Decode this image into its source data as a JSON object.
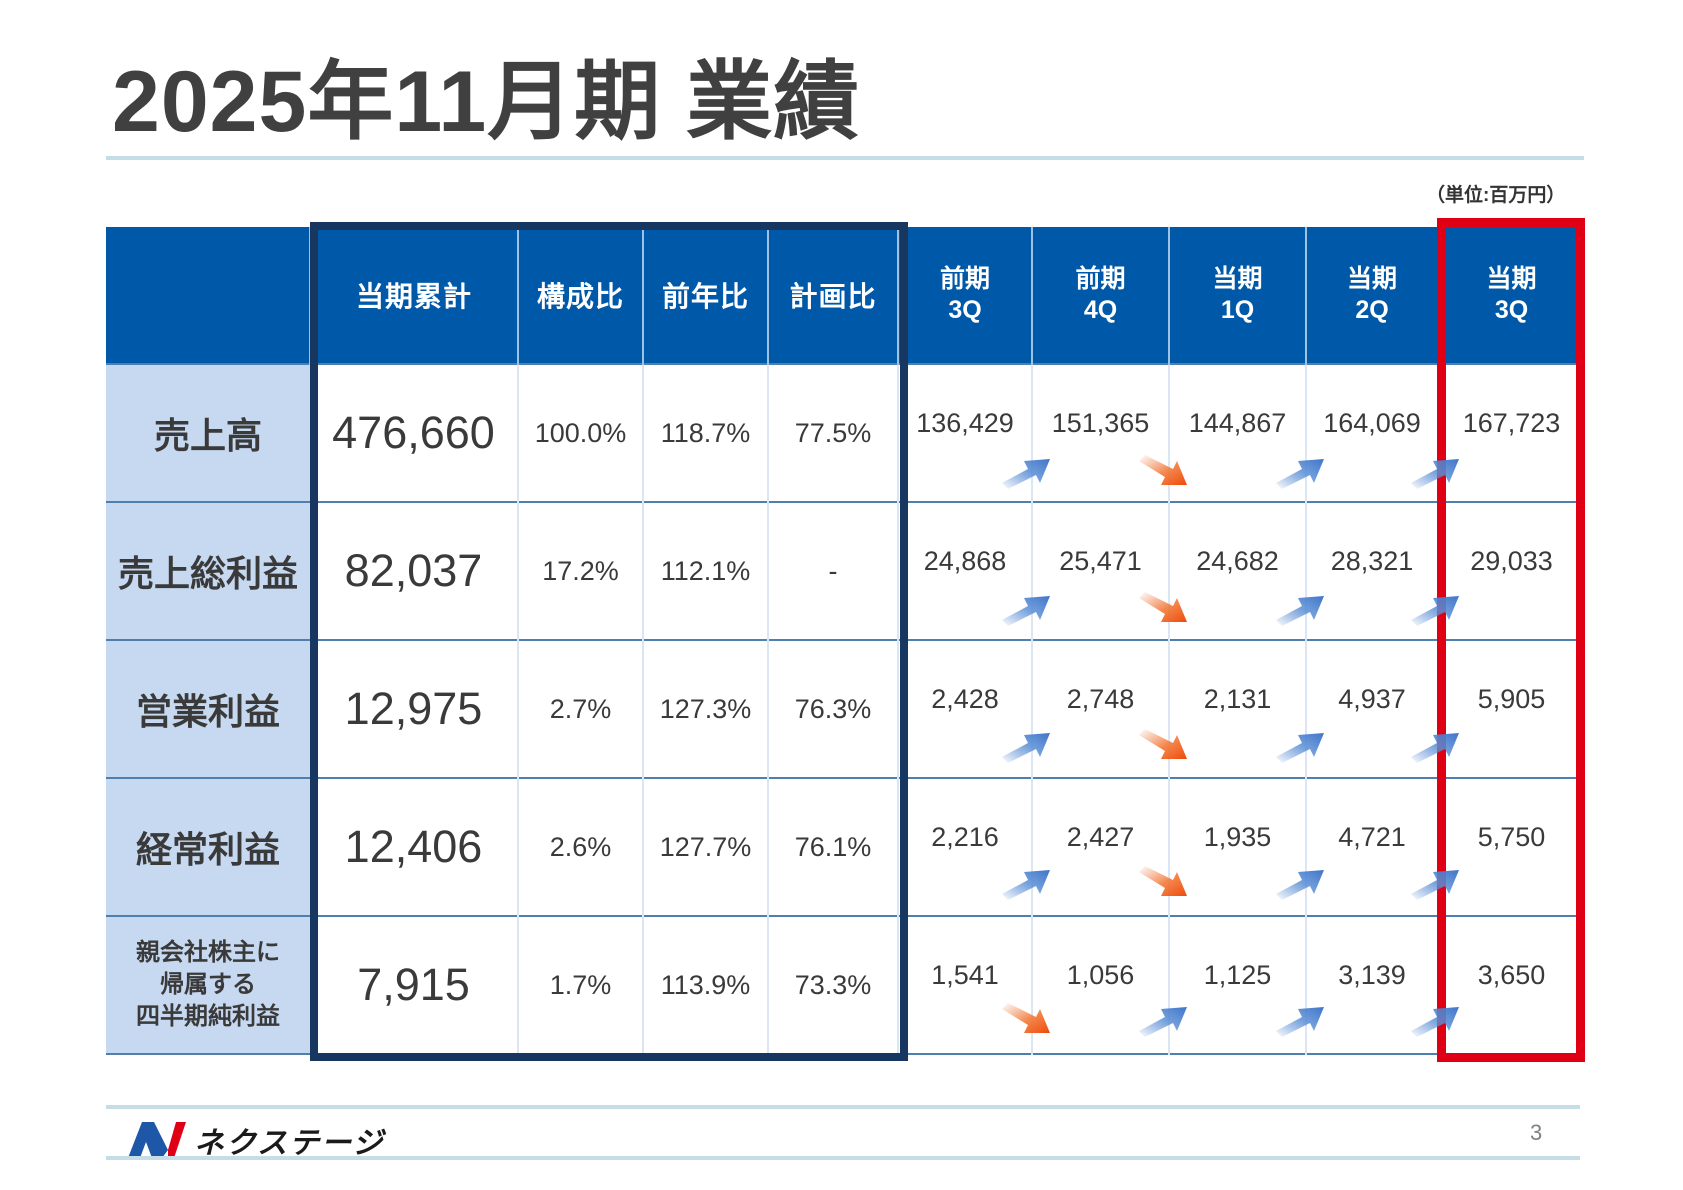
{
  "title": "2025年11月期 業績",
  "unit": "（単位:百万円）",
  "columns": {
    "cumulative": "当期累計",
    "composition": "構成比",
    "yoy": "前年比",
    "vs_plan": "計画比",
    "q1": {
      "line1": "前期",
      "line2": "3Q"
    },
    "q2": {
      "line1": "前期",
      "line2": "4Q"
    },
    "q3": {
      "line1": "当期",
      "line2": "1Q"
    },
    "q4": {
      "line1": "当期",
      "line2": "2Q"
    },
    "q5": {
      "line1": "当期",
      "line2": "3Q"
    }
  },
  "rows": [
    {
      "label": "売上高",
      "cumulative": "476,660",
      "composition": "100.0%",
      "yoy": "118.7%",
      "vs_plan": "77.5%",
      "quarters": [
        "136,429",
        "151,365",
        "144,867",
        "164,069",
        "167,723"
      ],
      "trends": [
        "up",
        "down",
        "up",
        "up"
      ]
    },
    {
      "label": "売上総利益",
      "cumulative": "82,037",
      "composition": "17.2%",
      "yoy": "112.1%",
      "vs_plan": "-",
      "quarters": [
        "24,868",
        "25,471",
        "24,682",
        "28,321",
        "29,033"
      ],
      "trends": [
        "up",
        "down",
        "up",
        "up"
      ]
    },
    {
      "label": "営業利益",
      "cumulative": "12,975",
      "composition": "2.7%",
      "yoy": "127.3%",
      "vs_plan": "76.3%",
      "quarters": [
        "2,428",
        "2,748",
        "2,131",
        "4,937",
        "5,905"
      ],
      "trends": [
        "up",
        "down",
        "up",
        "up"
      ]
    },
    {
      "label": "経常利益",
      "cumulative": "12,406",
      "composition": "2.6%",
      "yoy": "127.7%",
      "vs_plan": "76.1%",
      "quarters": [
        "2,216",
        "2,427",
        "1,935",
        "4,721",
        "5,750"
      ],
      "trends": [
        "up",
        "down",
        "up",
        "up"
      ]
    },
    {
      "label_lines": [
        "親会社株主に",
        "帰属する",
        "四半期純利益"
      ],
      "cumulative": "7,915",
      "composition": "1.7%",
      "yoy": "113.9%",
      "vs_plan": "73.3%",
      "quarters": [
        "1,541",
        "1,056",
        "1,125",
        "3,139",
        "3,650"
      ],
      "trends": [
        "down",
        "up",
        "up",
        "up"
      ]
    }
  ],
  "colors": {
    "header_blue": "#0059a8",
    "label_bg": "#c7d9f1",
    "navy_highlight": "#173760",
    "red_highlight": "#e00015",
    "arrow_up": "#4a7fcf",
    "arrow_down": "#f05010"
  },
  "footer": {
    "brand": "ネクステージ",
    "page_number": "3"
  }
}
